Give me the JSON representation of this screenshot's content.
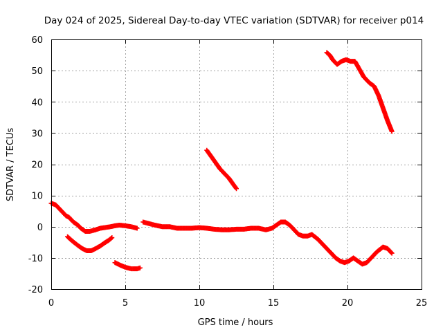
{
  "chart_data": {
    "type": "scatter",
    "title": "Day 024 of 2025, Sidereal Day-to-day VTEC variation (SDTVAR) for receiver p014",
    "xlabel": "GPS time / hours",
    "ylabel": "SDTVAR / TECUs",
    "xlim": [
      0,
      25
    ],
    "ylim": [
      -20,
      60
    ],
    "xticks": [
      "0",
      "5",
      "10",
      "15",
      "20",
      "25"
    ],
    "yticks": [
      "-20",
      "-10",
      "0",
      "10",
      "20",
      "30",
      "40",
      "50",
      "60"
    ],
    "grid": true,
    "marker": "+",
    "series_color": "#ff0000",
    "series": [
      {
        "name": "arc-1",
        "points": [
          [
            0.0,
            7.5
          ],
          [
            0.3,
            7.0
          ],
          [
            0.5,
            6.0
          ],
          [
            0.8,
            4.5
          ],
          [
            1.0,
            3.5
          ],
          [
            1.2,
            3.0
          ],
          [
            1.5,
            1.5
          ],
          [
            1.8,
            0.5
          ],
          [
            2.0,
            -0.5
          ],
          [
            2.3,
            -1.5
          ],
          [
            2.6,
            -1.5
          ],
          [
            3.0,
            -1.0
          ],
          [
            3.3,
            -0.5
          ],
          [
            3.6,
            -0.3
          ],
          [
            4.0,
            0.0
          ],
          [
            4.3,
            0.3
          ],
          [
            4.6,
            0.5
          ],
          [
            5.0,
            0.3
          ],
          [
            5.4,
            0.0
          ],
          [
            5.8,
            -0.5
          ]
        ]
      },
      {
        "name": "arc-2",
        "points": [
          [
            1.1,
            -3.2
          ],
          [
            1.4,
            -4.5
          ],
          [
            1.8,
            -6.0
          ],
          [
            2.1,
            -7.0
          ],
          [
            2.4,
            -7.7
          ],
          [
            2.7,
            -7.7
          ],
          [
            3.0,
            -7.0
          ],
          [
            3.3,
            -6.2
          ],
          [
            3.6,
            -5.2
          ],
          [
            3.9,
            -4.3
          ],
          [
            4.1,
            -3.5
          ]
        ]
      },
      {
        "name": "arc-3",
        "points": [
          [
            4.3,
            -11.5
          ],
          [
            4.6,
            -12.2
          ],
          [
            5.0,
            -13.0
          ],
          [
            5.4,
            -13.5
          ],
          [
            5.8,
            -13.5
          ],
          [
            6.0,
            -13.2
          ]
        ]
      },
      {
        "name": "arc-4",
        "points": [
          [
            6.2,
            1.5
          ],
          [
            6.6,
            1.0
          ],
          [
            7.0,
            0.5
          ],
          [
            7.5,
            0.0
          ],
          [
            8.0,
            0.0
          ],
          [
            8.5,
            -0.5
          ],
          [
            9.0,
            -0.5
          ],
          [
            9.5,
            -0.5
          ],
          [
            10.0,
            -0.3
          ],
          [
            10.5,
            -0.5
          ],
          [
            11.0,
            -0.8
          ],
          [
            11.5,
            -1.0
          ],
          [
            12.0,
            -1.0
          ],
          [
            12.5,
            -0.8
          ],
          [
            13.0,
            -0.8
          ],
          [
            13.5,
            -0.5
          ],
          [
            14.0,
            -0.5
          ],
          [
            14.5,
            -1.0
          ],
          [
            14.9,
            -0.5
          ],
          [
            15.2,
            0.5
          ],
          [
            15.5,
            1.5
          ],
          [
            15.8,
            1.5
          ],
          [
            16.1,
            0.5
          ],
          [
            16.4,
            -1.0
          ],
          [
            16.7,
            -2.5
          ],
          [
            17.0,
            -3.0
          ],
          [
            17.3,
            -3.0
          ],
          [
            17.6,
            -2.5
          ],
          [
            18.0,
            -4.0
          ],
          [
            18.4,
            -6.0
          ],
          [
            18.8,
            -8.0
          ],
          [
            19.2,
            -10.0
          ],
          [
            19.5,
            -11.0
          ],
          [
            19.8,
            -11.5
          ],
          [
            20.1,
            -11.0
          ],
          [
            20.4,
            -10.0
          ],
          [
            20.7,
            -11.0
          ],
          [
            21.0,
            -12.0
          ],
          [
            21.3,
            -11.5
          ],
          [
            21.6,
            -10.0
          ],
          [
            22.0,
            -8.0
          ],
          [
            22.4,
            -6.5
          ],
          [
            22.7,
            -7.0
          ],
          [
            23.0,
            -8.5
          ]
        ]
      },
      {
        "name": "arc-5",
        "points": [
          [
            10.5,
            24.5
          ],
          [
            10.8,
            22.5
          ],
          [
            11.1,
            20.5
          ],
          [
            11.4,
            18.5
          ],
          [
            11.7,
            17.0
          ],
          [
            12.0,
            15.5
          ],
          [
            12.3,
            13.5
          ],
          [
            12.5,
            12.2
          ]
        ]
      },
      {
        "name": "arc-6",
        "points": [
          [
            18.6,
            55.8
          ],
          [
            18.8,
            55.0
          ],
          [
            19.0,
            53.5
          ],
          [
            19.3,
            52.0
          ],
          [
            19.6,
            53.0
          ],
          [
            19.9,
            53.5
          ],
          [
            20.2,
            53.0
          ],
          [
            20.5,
            53.0
          ],
          [
            20.8,
            50.5
          ],
          [
            21.1,
            48.0
          ],
          [
            21.5,
            46.0
          ],
          [
            21.8,
            45.0
          ],
          [
            22.1,
            42.0
          ],
          [
            22.4,
            38.0
          ],
          [
            22.7,
            34.0
          ],
          [
            23.0,
            30.5
          ]
        ]
      }
    ]
  }
}
